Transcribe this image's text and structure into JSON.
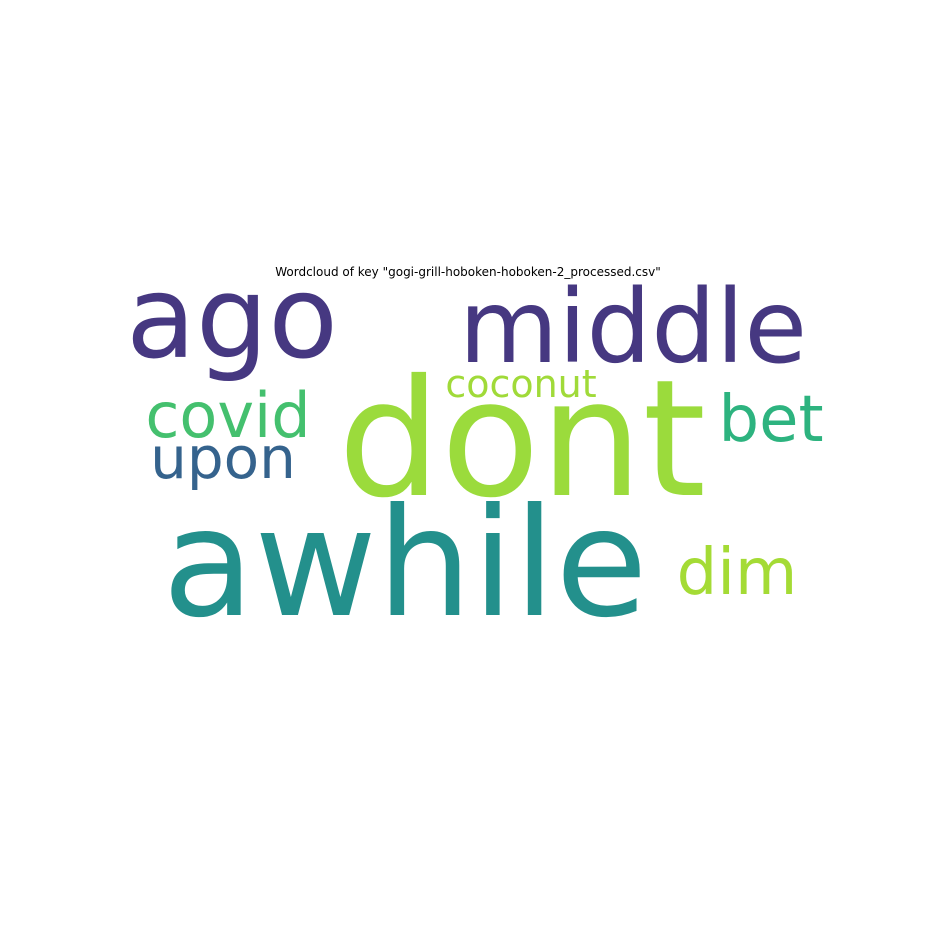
{
  "title": "Wordcloud of key \"gogi-grill-hoboken-hoboken-2_processed.csv\"",
  "words": [
    {
      "text": "dont",
      "color": "#9bdb3c"
    },
    {
      "text": "awhile",
      "color": "#23908c"
    },
    {
      "text": "ago",
      "color": "#463881"
    },
    {
      "text": "middle",
      "color": "#463881"
    },
    {
      "text": "covid",
      "color": "#44c06e"
    },
    {
      "text": "bet",
      "color": "#2db37f"
    },
    {
      "text": "upon",
      "color": "#35638d"
    },
    {
      "text": "coconut",
      "color": "#a0da39"
    },
    {
      "text": "dim",
      "color": "#a4db35"
    }
  ]
}
